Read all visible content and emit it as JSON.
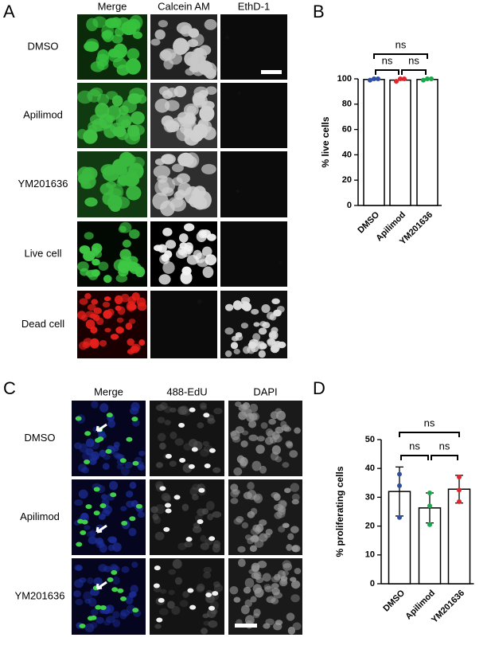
{
  "panels": {
    "A": {
      "letter": "A",
      "columns": [
        "Merge",
        "Calcein AM",
        "EthD-1"
      ],
      "column_colors": [
        "#000000",
        "#1aa64a",
        "#e0252b"
      ],
      "rows": [
        "DMSO",
        "Apilimod",
        "YM201636",
        "Live cell",
        "Dead cell"
      ]
    },
    "B": {
      "letter": "B"
    },
    "C": {
      "letter": "C",
      "columns": [
        "Merge",
        "488-EdU",
        "DAPI"
      ],
      "column_colors": [
        "#000000",
        "#1aa64a",
        "#2a7fc1"
      ],
      "rows": [
        "DMSO",
        "Apilimod",
        "YM201636"
      ]
    },
    "D": {
      "letter": "D"
    }
  },
  "chart_data": [
    {
      "type": "bar",
      "ylabel": "% live cells",
      "categories": [
        "DMSO",
        "Apilimod",
        "YM201636"
      ],
      "values": [
        99.5,
        99,
        99.5
      ],
      "colors": [
        "#2f4ea1",
        "#e0252b",
        "#1aa64a"
      ],
      "points": [
        [
          99,
          100,
          100
        ],
        [
          98,
          100,
          100
        ],
        [
          99,
          100,
          100
        ]
      ],
      "ylim": [
        0,
        100
      ],
      "yticks": [
        0,
        20,
        40,
        60,
        80,
        100
      ],
      "significance": [
        {
          "pair": [
            0,
            2
          ],
          "label": "ns"
        },
        {
          "pair": [
            0,
            1
          ],
          "label": "ns"
        },
        {
          "pair": [
            1,
            2
          ],
          "label": "ns"
        }
      ]
    },
    {
      "type": "bar",
      "ylabel": "% proliferating cells",
      "categories": [
        "DMSO",
        "Apilimod",
        "YM201636"
      ],
      "values": [
        32,
        26.3,
        32.8
      ],
      "errors": [
        8.5,
        5.2,
        4.8
      ],
      "colors": [
        "#2f4ea1",
        "#1aa64a",
        "#e0252b"
      ],
      "points": [
        [
          38,
          34,
          23
        ],
        [
          31.5,
          27,
          20.5
        ],
        [
          37,
          32.5,
          28.5
        ]
      ],
      "ylim": [
        0,
        50
      ],
      "yticks": [
        0,
        10,
        20,
        30,
        40,
        50
      ],
      "significance": [
        {
          "pair": [
            0,
            2
          ],
          "label": "ns"
        },
        {
          "pair": [
            0,
            1
          ],
          "label": "ns"
        },
        {
          "pair": [
            1,
            2
          ],
          "label": "ns"
        }
      ]
    }
  ]
}
